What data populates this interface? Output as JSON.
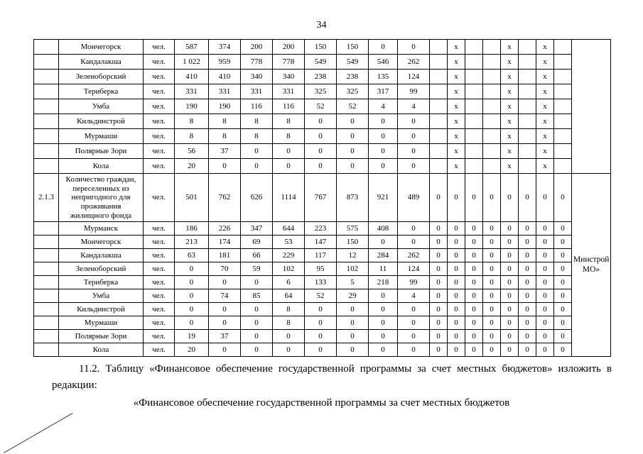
{
  "page": {
    "number": "34"
  },
  "paragraphs": {
    "p1": "11.2. Таблицу «Финансовое обеспечение государственной программы за счет местных бюджетов» изложить в редакции:",
    "p2": "«Финансовое обеспечение государственной программы за счет местных бюджетов"
  },
  "table": {
    "unit_label": "чел.",
    "executor_groups": [
      {
        "start": 0,
        "span": 9,
        "label": ""
      },
      {
        "start": 9,
        "span": 11,
        "label": "Минстрой МО»"
      }
    ],
    "rows": [
      {
        "num": "",
        "name": "Мончегорск",
        "unit": "чел.",
        "values": [
          "587",
          "374",
          "200",
          "200",
          "150",
          "150",
          "0",
          "0"
        ],
        "tail": [
          "",
          "x",
          "",
          "",
          "x",
          "",
          "x",
          ""
        ]
      },
      {
        "num": "",
        "name": "Кандалакша",
        "unit": "чел.",
        "values": [
          "1 022",
          "959",
          "778",
          "778",
          "549",
          "549",
          "546",
          "262"
        ],
        "tail": [
          "",
          "x",
          "",
          "",
          "x",
          "",
          "x",
          ""
        ]
      },
      {
        "num": "",
        "name": "Зеленоборский",
        "unit": "чел.",
        "values": [
          "410",
          "410",
          "340",
          "340",
          "238",
          "238",
          "135",
          "124"
        ],
        "tail": [
          "",
          "x",
          "",
          "",
          "x",
          "",
          "x",
          ""
        ]
      },
      {
        "num": "",
        "name": "Териберка",
        "unit": "чел.",
        "values": [
          "331",
          "331",
          "331",
          "331",
          "325",
          "325",
          "317",
          "99"
        ],
        "tail": [
          "",
          "x",
          "",
          "",
          "x",
          "",
          "x",
          ""
        ]
      },
      {
        "num": "",
        "name": "Умба",
        "unit": "чел.",
        "values": [
          "190",
          "190",
          "116",
          "116",
          "52",
          "52",
          "4",
          "4"
        ],
        "tail": [
          "",
          "x",
          "",
          "",
          "x",
          "",
          "x",
          ""
        ]
      },
      {
        "num": "",
        "name": "Кильдинстрой",
        "unit": "чел.",
        "values": [
          "8",
          "8",
          "8",
          "8",
          "0",
          "0",
          "0",
          "0"
        ],
        "tail": [
          "",
          "x",
          "",
          "",
          "x",
          "",
          "x",
          ""
        ]
      },
      {
        "num": "",
        "name": "Мурмаши",
        "unit": "чел.",
        "values": [
          "8",
          "8",
          "8",
          "8",
          "0",
          "0",
          "0",
          "0"
        ],
        "tail": [
          "",
          "x",
          "",
          "",
          "x",
          "",
          "x",
          ""
        ]
      },
      {
        "num": "",
        "name": "Полярные Зори",
        "unit": "чел.",
        "values": [
          "56",
          "37",
          "0",
          "0",
          "0",
          "0",
          "0",
          "0"
        ],
        "tail": [
          "",
          "x",
          "",
          "",
          "x",
          "",
          "x",
          ""
        ]
      },
      {
        "num": "",
        "name": "Кола",
        "unit": "чел.",
        "values": [
          "20",
          "0",
          "0",
          "0",
          "0",
          "0",
          "0",
          "0"
        ],
        "tail": [
          "",
          "x",
          "",
          "",
          "x",
          "",
          "x",
          ""
        ]
      },
      {
        "num": "2.1.3",
        "name": "Количество граждан, переселенных из непригодного для проживания жилищного фонда",
        "unit": "чел.",
        "section": true,
        "values": [
          "501",
          "762",
          "626",
          "1114",
          "767",
          "873",
          "921",
          "489"
        ],
        "tail": [
          "0",
          "0",
          "0",
          "0",
          "0",
          "0",
          "0",
          "0"
        ]
      },
      {
        "num": "",
        "name": "Мурманск",
        "unit": "чел.",
        "values": [
          "186",
          "226",
          "347",
          "644",
          "223",
          "575",
          "408",
          "0"
        ],
        "tail": [
          "0",
          "0",
          "0",
          "0",
          "0",
          "0",
          "0",
          "0"
        ]
      },
      {
        "num": "",
        "name": "Мончегорск",
        "unit": "чел.",
        "values": [
          "213",
          "174",
          "69",
          "53",
          "147",
          "150",
          "0",
          "0"
        ],
        "tail": [
          "0",
          "0",
          "0",
          "0",
          "0",
          "0",
          "0",
          "0"
        ]
      },
      {
        "num": "",
        "name": "Кандалакша",
        "unit": "чел.",
        "values": [
          "63",
          "181",
          "66",
          "229",
          "117",
          "12",
          "284",
          "262"
        ],
        "tail": [
          "0",
          "0",
          "0",
          "0",
          "0",
          "0",
          "0",
          "0"
        ]
      },
      {
        "num": "",
        "name": "Зеленоборский",
        "unit": "чел.",
        "values": [
          "0",
          "70",
          "59",
          "102",
          "95",
          "102",
          "11",
          "124"
        ],
        "tail": [
          "0",
          "0",
          "0",
          "0",
          "0",
          "0",
          "0",
          "0"
        ]
      },
      {
        "num": "",
        "name": "Териберка",
        "unit": "чел.",
        "values": [
          "0",
          "0",
          "0",
          "6",
          "133",
          "5",
          "218",
          "99"
        ],
        "tail": [
          "0",
          "0",
          "0",
          "0",
          "0",
          "0",
          "0",
          "0"
        ]
      },
      {
        "num": "",
        "name": "Умба",
        "unit": "чел.",
        "values": [
          "0",
          "74",
          "85",
          "64",
          "52",
          "29",
          "0",
          "4"
        ],
        "tail": [
          "0",
          "0",
          "0",
          "0",
          "0",
          "0",
          "0",
          "0"
        ]
      },
      {
        "num": "",
        "name": "Кильдинстрой",
        "unit": "чел.",
        "values": [
          "0",
          "0",
          "0",
          "8",
          "0",
          "0",
          "0",
          "0"
        ],
        "tail": [
          "0",
          "0",
          "0",
          "0",
          "0",
          "0",
          "0",
          "0"
        ]
      },
      {
        "num": "",
        "name": "Мурмаши",
        "unit": "чел.",
        "values": [
          "0",
          "0",
          "0",
          "8",
          "0",
          "0",
          "0",
          "0"
        ],
        "tail": [
          "0",
          "0",
          "0",
          "0",
          "0",
          "0",
          "0",
          "0"
        ]
      },
      {
        "num": "",
        "name": "Полярные Зори",
        "unit": "чел.",
        "values": [
          "19",
          "37",
          "0",
          "0",
          "0",
          "0",
          "0",
          "0"
        ],
        "tail": [
          "0",
          "0",
          "0",
          "0",
          "0",
          "0",
          "0",
          "0"
        ]
      },
      {
        "num": "",
        "name": "Кола",
        "unit": "чел.",
        "values": [
          "20",
          "0",
          "0",
          "0",
          "0",
          "0",
          "0",
          "0"
        ],
        "tail": [
          "0",
          "0",
          "0",
          "0",
          "0",
          "0",
          "0",
          "0"
        ]
      }
    ]
  }
}
